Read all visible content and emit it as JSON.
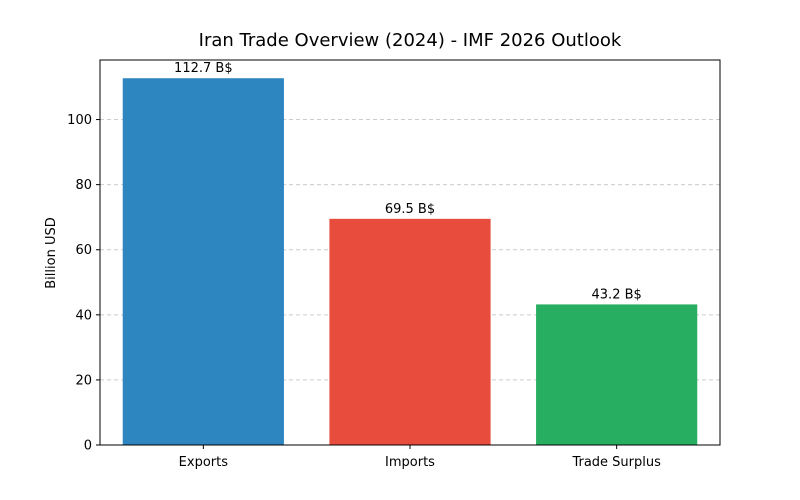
{
  "chart_data": {
    "type": "bar",
    "title": "Iran Trade Overview (2024) - IMF 2026 Outlook",
    "y_label": "Billion USD",
    "categories": [
      "Exports",
      "Imports",
      "Trade Surplus"
    ],
    "values": [
      112.7,
      69.5,
      43.2
    ],
    "value_labels": [
      "112.7 B$",
      "69.5 B$",
      "43.2 B$"
    ],
    "colors": [
      "#2e86c1",
      "#e74c3c",
      "#27ae60"
    ],
    "ylim": [
      0,
      118.3
    ],
    "yticks": [
      0,
      20,
      40,
      60,
      80,
      100
    ],
    "grid": true
  }
}
